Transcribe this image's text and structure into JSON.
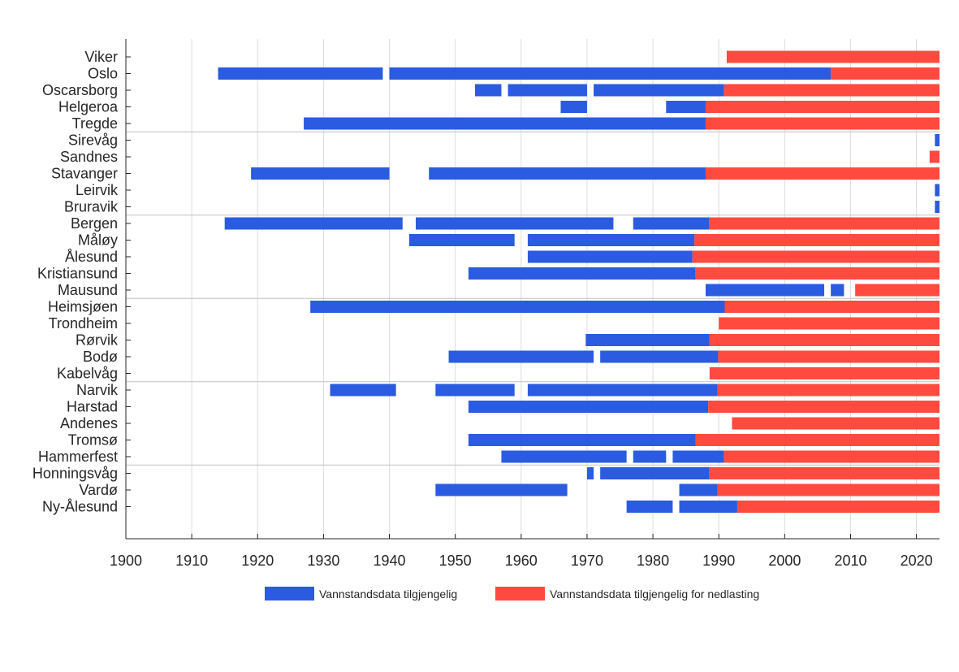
{
  "chart_data": {
    "type": "bar",
    "orientation": "horizontal-timeline",
    "title": "",
    "xlabel": "",
    "ylabel": "",
    "xlim": [
      1900,
      2023.5
    ],
    "xticks": [
      "1900",
      "1910",
      "1920",
      "1930",
      "1940",
      "1950",
      "1960",
      "1970",
      "1980",
      "1990",
      "2000",
      "2010",
      "2020"
    ],
    "grid": "vertical",
    "legend_position": "bottom",
    "colors": {
      "available": "#2a5be0",
      "download": "#ff4a3f",
      "grid": "#dddddd",
      "separator": "#c0c0c0"
    },
    "legend": [
      {
        "key": "available",
        "label": "Vannstandsdata tilgjengelig"
      },
      {
        "key": "download",
        "label": "Vannstandsdata tilgjengelig for nedlasting"
      }
    ],
    "group_breaks_after": [
      4,
      9,
      14,
      19,
      24
    ],
    "stations": [
      {
        "name": "Viker",
        "available": [],
        "download": [
          [
            1991.2,
            2023.5
          ]
        ]
      },
      {
        "name": "Oslo",
        "available": [
          [
            1914,
            1939
          ],
          [
            1940,
            2007
          ]
        ],
        "download": [
          [
            2007,
            2023.5
          ]
        ]
      },
      {
        "name": "Oscarsborg",
        "available": [
          [
            1953,
            1957
          ],
          [
            1958,
            1970
          ],
          [
            1971,
            1990.8
          ]
        ],
        "download": [
          [
            1990.8,
            2023.5
          ]
        ]
      },
      {
        "name": "Helgeroa",
        "available": [
          [
            1966,
            1970
          ],
          [
            1982,
            1988
          ]
        ],
        "download": [
          [
            1988,
            2023.5
          ]
        ]
      },
      {
        "name": "Tregde",
        "available": [
          [
            1927,
            1988
          ]
        ],
        "download": [
          [
            1988,
            2023.5
          ]
        ]
      },
      {
        "name": "Sirevåg",
        "available": [
          [
            2022.8,
            2023.5
          ]
        ],
        "download": []
      },
      {
        "name": "Sandnes",
        "available": [],
        "download": [
          [
            2022,
            2023.5
          ]
        ]
      },
      {
        "name": "Stavanger",
        "available": [
          [
            1919,
            1940
          ],
          [
            1946,
            1988
          ]
        ],
        "download": [
          [
            1988,
            2023.5
          ]
        ]
      },
      {
        "name": "Leirvik",
        "available": [
          [
            2022.8,
            2023.5
          ]
        ],
        "download": []
      },
      {
        "name": "Bruravik",
        "available": [
          [
            2022.8,
            2023.5
          ]
        ],
        "download": []
      },
      {
        "name": "Bergen",
        "available": [
          [
            1915,
            1942
          ],
          [
            1944,
            1974
          ],
          [
            1977,
            1988.5
          ]
        ],
        "download": [
          [
            1988.5,
            2023.5
          ]
        ]
      },
      {
        "name": "Måløy",
        "available": [
          [
            1943,
            1959
          ],
          [
            1961,
            1986.3
          ]
        ],
        "download": [
          [
            1986.3,
            2023.5
          ]
        ]
      },
      {
        "name": "Ålesund",
        "available": [
          [
            1961,
            1986
          ]
        ],
        "download": [
          [
            1986,
            2023.5
          ]
        ]
      },
      {
        "name": "Kristiansund",
        "available": [
          [
            1952,
            1986.4
          ]
        ],
        "download": [
          [
            1986.4,
            2023.5
          ]
        ]
      },
      {
        "name": "Mausund",
        "available": [
          [
            1988,
            2006
          ],
          [
            2007,
            2009
          ]
        ],
        "download": [
          [
            2010.7,
            2023.5
          ]
        ]
      },
      {
        "name": "Heimsjøen",
        "available": [
          [
            1928,
            1990.9
          ]
        ],
        "download": [
          [
            1990.9,
            2023.5
          ]
        ]
      },
      {
        "name": "Trondheim",
        "available": [],
        "download": [
          [
            1990,
            2023.5
          ]
        ]
      },
      {
        "name": "Rørvik",
        "available": [
          [
            1969.8,
            1988.6
          ]
        ],
        "download": [
          [
            1988.6,
            2023.5
          ]
        ]
      },
      {
        "name": "Bodø",
        "available": [
          [
            1949,
            1971
          ],
          [
            1972,
            1989.9
          ]
        ],
        "download": [
          [
            1989.9,
            2023.5
          ]
        ]
      },
      {
        "name": "Kabelvåg",
        "available": [],
        "download": [
          [
            1988.6,
            2023.5
          ]
        ]
      },
      {
        "name": "Narvik",
        "available": [
          [
            1931,
            1941
          ],
          [
            1947,
            1959
          ],
          [
            1961,
            1989.8
          ]
        ],
        "download": [
          [
            1989.8,
            2023.5
          ]
        ]
      },
      {
        "name": "Harstad",
        "available": [
          [
            1952,
            1988.4
          ]
        ],
        "download": [
          [
            1988.4,
            2023.5
          ]
        ]
      },
      {
        "name": "Andenes",
        "available": [],
        "download": [
          [
            1992,
            2023.5
          ]
        ]
      },
      {
        "name": "Tromsø",
        "available": [
          [
            1952,
            1986.5
          ]
        ],
        "download": [
          [
            1986.5,
            2023.5
          ]
        ]
      },
      {
        "name": "Hammerfest",
        "available": [
          [
            1957,
            1976
          ],
          [
            1977,
            1982
          ],
          [
            1983,
            1990.8
          ]
        ],
        "download": [
          [
            1990.8,
            2023.5
          ]
        ]
      },
      {
        "name": "Honningsvåg",
        "available": [
          [
            1970,
            1971
          ],
          [
            1972,
            1988.5
          ]
        ],
        "download": [
          [
            1988.5,
            2023.5
          ]
        ]
      },
      {
        "name": "Vardø",
        "available": [
          [
            1947,
            1967
          ],
          [
            1984,
            1989.8
          ]
        ],
        "download": [
          [
            1989.8,
            2023.5
          ]
        ]
      },
      {
        "name": "Ny-Ålesund",
        "available": [
          [
            1976,
            1983
          ],
          [
            1984,
            1992.8
          ]
        ],
        "download": [
          [
            1992.8,
            2023.5
          ]
        ]
      }
    ]
  }
}
